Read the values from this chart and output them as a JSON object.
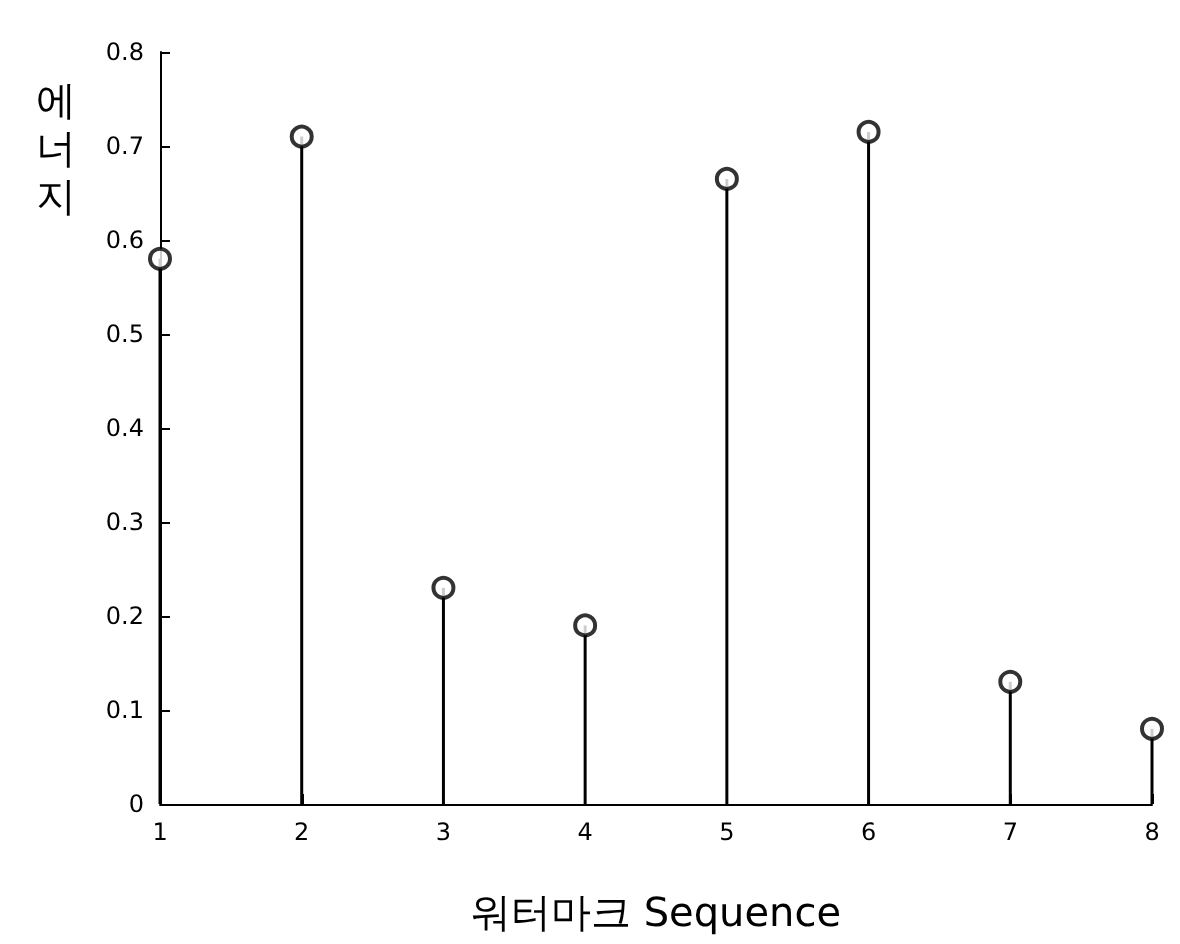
{
  "chart_data": {
    "type": "lollipop",
    "xlabel": "워터마크 Sequence",
    "ylabel": "에너지",
    "x": [
      1,
      2,
      3,
      4,
      5,
      6,
      7,
      8
    ],
    "series": [
      {
        "color": "#000000",
        "values": [
          0.58,
          0.71,
          0.23,
          0.19,
          0.665,
          0.715,
          0.13,
          0.08
        ]
      }
    ],
    "xlim": [
      1,
      8
    ],
    "xticks": [
      1,
      2,
      3,
      4,
      5,
      6,
      7,
      8
    ],
    "ylim": [
      0,
      0.8
    ],
    "yticks": [
      0,
      0.1,
      0.2,
      0.3,
      0.4,
      0.5,
      0.6,
      0.7,
      0.8
    ],
    "marker": "circle"
  }
}
